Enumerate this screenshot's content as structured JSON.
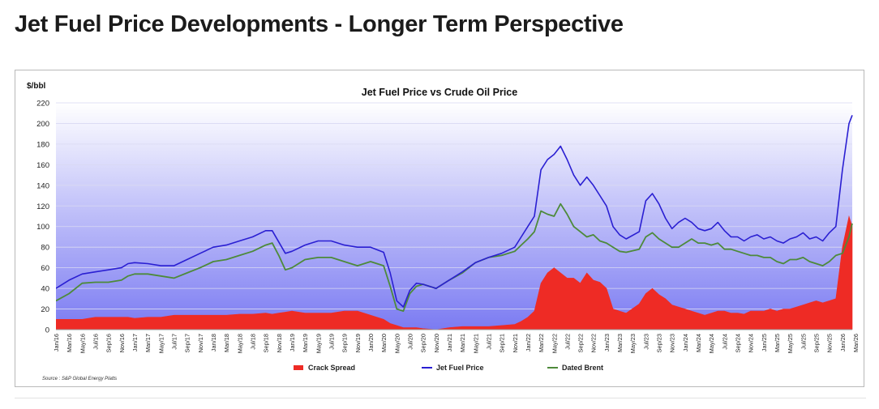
{
  "page": {
    "title": "Jet Fuel Price Developments - Longer Term Perspective"
  },
  "colors": {
    "crack": "#ee2b25",
    "jet": "#2a1fd2",
    "brent": "#4d8a3a",
    "plot_bg_top": "#ffffff",
    "plot_bg_bottom": "#7b7bf2",
    "grid": "#d9d9f2"
  },
  "chart_data": {
    "type": "line",
    "title": "Jet Fuel Price vs Crude Oil Price",
    "ylabel": "$/bbl",
    "xlabel": "",
    "ylim": [
      0,
      220
    ],
    "yticks": [
      0,
      20,
      40,
      60,
      80,
      100,
      120,
      140,
      160,
      180,
      200,
      220
    ],
    "source": "Source : S&P Global Energy Platts",
    "x_tick_labels": [
      "Jan/16",
      "Mar/16",
      "May/16",
      "Jul/16",
      "Sep/16",
      "Nov/16",
      "Jan/17",
      "Mar/17",
      "May/17",
      "Jul/17",
      "Sep/17",
      "Nov/17",
      "Jan/18",
      "Mar/18",
      "May/18",
      "Jul/18",
      "Sep/18",
      "Nov/18",
      "Jan/19",
      "Mar/19",
      "May/19",
      "Jul/19",
      "Sep/19",
      "Nov/19",
      "Jan/20",
      "Mar/20",
      "May/20",
      "Jul/20",
      "Sep/20",
      "Nov/20",
      "Jan/21",
      "Mar/21",
      "May/21",
      "Jul/21",
      "Sep/21",
      "Nov/21",
      "Jan/22",
      "Mar/22",
      "May/22",
      "Jul/22",
      "Sep/22",
      "Nov/22",
      "Jan/23",
      "Mar/23",
      "May/23",
      "Jul/23",
      "Sep/23",
      "Nov/23",
      "Jan/24",
      "Mar/24",
      "May/24",
      "Jul/24",
      "Sep/24",
      "Nov/24",
      "Jan/25",
      "Mar/25",
      "May/25",
      "Jul/25",
      "Sep/25",
      "Nov/25",
      "Jan/26",
      "Mar/26"
    ],
    "legend": [
      {
        "name": "Crack Spread",
        "kind": "area",
        "color": "#ee2b25"
      },
      {
        "name": "Jet Fuel Price",
        "kind": "line",
        "color": "#2a1fd2"
      },
      {
        "name": "Dated Brent",
        "kind": "line",
        "color": "#4d8a3a"
      }
    ],
    "months_index_note": "x = months since Jan 2016",
    "series": [
      {
        "name": "Jet Fuel Price",
        "points": [
          [
            0,
            40
          ],
          [
            2,
            48
          ],
          [
            4,
            54
          ],
          [
            6,
            56
          ],
          [
            8,
            58
          ],
          [
            10,
            60
          ],
          [
            11,
            64
          ],
          [
            12,
            65
          ],
          [
            14,
            64
          ],
          [
            16,
            62
          ],
          [
            18,
            62
          ],
          [
            20,
            68
          ],
          [
            22,
            74
          ],
          [
            24,
            80
          ],
          [
            26,
            82
          ],
          [
            28,
            86
          ],
          [
            30,
            90
          ],
          [
            32,
            96
          ],
          [
            33,
            96
          ],
          [
            34,
            85
          ],
          [
            35,
            74
          ],
          [
            36,
            76
          ],
          [
            38,
            82
          ],
          [
            40,
            86
          ],
          [
            42,
            86
          ],
          [
            44,
            82
          ],
          [
            46,
            80
          ],
          [
            48,
            80
          ],
          [
            50,
            75
          ],
          [
            51,
            55
          ],
          [
            52,
            28
          ],
          [
            53,
            22
          ],
          [
            54,
            38
          ],
          [
            55,
            45
          ],
          [
            56,
            44
          ],
          [
            58,
            40
          ],
          [
            60,
            48
          ],
          [
            62,
            56
          ],
          [
            64,
            65
          ],
          [
            66,
            70
          ],
          [
            68,
            74
          ],
          [
            70,
            80
          ],
          [
            71,
            90
          ],
          [
            72,
            100
          ],
          [
            73,
            110
          ],
          [
            74,
            155
          ],
          [
            75,
            165
          ],
          [
            76,
            170
          ],
          [
            77,
            178
          ],
          [
            78,
            165
          ],
          [
            79,
            150
          ],
          [
            80,
            140
          ],
          [
            81,
            148
          ],
          [
            82,
            140
          ],
          [
            83,
            130
          ],
          [
            84,
            120
          ],
          [
            85,
            100
          ],
          [
            86,
            92
          ],
          [
            87,
            88
          ],
          [
            89,
            95
          ],
          [
            90,
            125
          ],
          [
            91,
            132
          ],
          [
            92,
            122
          ],
          [
            93,
            108
          ],
          [
            94,
            98
          ],
          [
            95,
            104
          ],
          [
            96,
            108
          ],
          [
            97,
            104
          ],
          [
            98,
            98
          ],
          [
            99,
            96
          ],
          [
            100,
            98
          ],
          [
            101,
            104
          ],
          [
            102,
            96
          ],
          [
            103,
            90
          ],
          [
            104,
            90
          ],
          [
            105,
            86
          ],
          [
            106,
            90
          ],
          [
            107,
            92
          ],
          [
            108,
            88
          ],
          [
            109,
            90
          ],
          [
            110,
            86
          ],
          [
            111,
            84
          ],
          [
            112,
            88
          ],
          [
            113,
            90
          ],
          [
            114,
            94
          ],
          [
            115,
            88
          ],
          [
            116,
            90
          ],
          [
            117,
            86
          ],
          [
            118,
            94
          ],
          [
            119,
            100
          ],
          [
            120,
            155
          ],
          [
            121,
            200
          ],
          [
            121.5,
            208
          ]
        ]
      },
      {
        "name": "Dated Brent",
        "points": [
          [
            0,
            28
          ],
          [
            2,
            35
          ],
          [
            4,
            45
          ],
          [
            6,
            46
          ],
          [
            8,
            46
          ],
          [
            10,
            48
          ],
          [
            11,
            52
          ],
          [
            12,
            54
          ],
          [
            14,
            54
          ],
          [
            16,
            52
          ],
          [
            18,
            50
          ],
          [
            20,
            55
          ],
          [
            22,
            60
          ],
          [
            24,
            66
          ],
          [
            26,
            68
          ],
          [
            28,
            72
          ],
          [
            30,
            76
          ],
          [
            32,
            82
          ],
          [
            33,
            84
          ],
          [
            34,
            72
          ],
          [
            35,
            58
          ],
          [
            36,
            60
          ],
          [
            38,
            68
          ],
          [
            40,
            70
          ],
          [
            42,
            70
          ],
          [
            44,
            66
          ],
          [
            46,
            62
          ],
          [
            48,
            66
          ],
          [
            50,
            62
          ],
          [
            51,
            42
          ],
          [
            52,
            20
          ],
          [
            53,
            18
          ],
          [
            54,
            35
          ],
          [
            55,
            42
          ],
          [
            56,
            44
          ],
          [
            58,
            40
          ],
          [
            60,
            48
          ],
          [
            62,
            55
          ],
          [
            64,
            65
          ],
          [
            66,
            70
          ],
          [
            68,
            72
          ],
          [
            70,
            76
          ],
          [
            71,
            82
          ],
          [
            72,
            88
          ],
          [
            73,
            95
          ],
          [
            74,
            115
          ],
          [
            75,
            112
          ],
          [
            76,
            110
          ],
          [
            77,
            122
          ],
          [
            78,
            112
          ],
          [
            79,
            100
          ],
          [
            80,
            95
          ],
          [
            81,
            90
          ],
          [
            82,
            92
          ],
          [
            83,
            86
          ],
          [
            84,
            84
          ],
          [
            85,
            80
          ],
          [
            86,
            76
          ],
          [
            87,
            75
          ],
          [
            89,
            78
          ],
          [
            90,
            90
          ],
          [
            91,
            94
          ],
          [
            92,
            88
          ],
          [
            93,
            84
          ],
          [
            94,
            80
          ],
          [
            95,
            80
          ],
          [
            96,
            84
          ],
          [
            97,
            88
          ],
          [
            98,
            84
          ],
          [
            99,
            84
          ],
          [
            100,
            82
          ],
          [
            101,
            84
          ],
          [
            102,
            78
          ],
          [
            103,
            78
          ],
          [
            104,
            76
          ],
          [
            105,
            74
          ],
          [
            106,
            72
          ],
          [
            107,
            72
          ],
          [
            108,
            70
          ],
          [
            109,
            70
          ],
          [
            110,
            66
          ],
          [
            111,
            64
          ],
          [
            112,
            68
          ],
          [
            113,
            68
          ],
          [
            114,
            70
          ],
          [
            115,
            66
          ],
          [
            116,
            64
          ],
          [
            117,
            62
          ],
          [
            118,
            66
          ],
          [
            119,
            72
          ],
          [
            120,
            74
          ],
          [
            121,
            90
          ],
          [
            121.5,
            103
          ]
        ]
      },
      {
        "name": "Crack Spread",
        "points": [
          [
            0,
            10
          ],
          [
            2,
            10
          ],
          [
            4,
            10
          ],
          [
            6,
            12
          ],
          [
            8,
            12
          ],
          [
            10,
            12
          ],
          [
            11,
            12
          ],
          [
            12,
            11
          ],
          [
            14,
            12
          ],
          [
            16,
            12
          ],
          [
            18,
            14
          ],
          [
            20,
            14
          ],
          [
            22,
            14
          ],
          [
            24,
            14
          ],
          [
            26,
            14
          ],
          [
            28,
            15
          ],
          [
            30,
            15
          ],
          [
            32,
            16
          ],
          [
            33,
            15
          ],
          [
            34,
            16
          ],
          [
            35,
            17
          ],
          [
            36,
            18
          ],
          [
            38,
            16
          ],
          [
            40,
            16
          ],
          [
            42,
            16
          ],
          [
            44,
            18
          ],
          [
            46,
            18
          ],
          [
            48,
            14
          ],
          [
            50,
            10
          ],
          [
            51,
            6
          ],
          [
            52,
            4
          ],
          [
            53,
            2
          ],
          [
            54,
            2
          ],
          [
            55,
            2
          ],
          [
            56,
            1
          ],
          [
            58,
            0
          ],
          [
            60,
            2
          ],
          [
            62,
            3
          ],
          [
            64,
            3
          ],
          [
            66,
            3
          ],
          [
            68,
            4
          ],
          [
            70,
            5
          ],
          [
            71,
            8
          ],
          [
            72,
            12
          ],
          [
            73,
            18
          ],
          [
            74,
            45
          ],
          [
            75,
            55
          ],
          [
            76,
            60
          ],
          [
            77,
            55
          ],
          [
            78,
            50
          ],
          [
            79,
            50
          ],
          [
            80,
            45
          ],
          [
            81,
            55
          ],
          [
            82,
            48
          ],
          [
            83,
            46
          ],
          [
            84,
            40
          ],
          [
            85,
            20
          ],
          [
            86,
            18
          ],
          [
            87,
            16
          ],
          [
            89,
            25
          ],
          [
            90,
            35
          ],
          [
            91,
            40
          ],
          [
            92,
            34
          ],
          [
            93,
            30
          ],
          [
            94,
            24
          ],
          [
            95,
            22
          ],
          [
            96,
            20
          ],
          [
            97,
            18
          ],
          [
            98,
            16
          ],
          [
            99,
            14
          ],
          [
            100,
            16
          ],
          [
            101,
            18
          ],
          [
            102,
            18
          ],
          [
            103,
            16
          ],
          [
            104,
            16
          ],
          [
            105,
            15
          ],
          [
            106,
            18
          ],
          [
            107,
            18
          ],
          [
            108,
            18
          ],
          [
            109,
            20
          ],
          [
            110,
            18
          ],
          [
            111,
            20
          ],
          [
            112,
            20
          ],
          [
            113,
            22
          ],
          [
            114,
            24
          ],
          [
            115,
            26
          ],
          [
            116,
            28
          ],
          [
            117,
            26
          ],
          [
            118,
            28
          ],
          [
            119,
            30
          ],
          [
            120,
            80
          ],
          [
            121,
            110
          ],
          [
            121.5,
            100
          ]
        ]
      }
    ]
  }
}
